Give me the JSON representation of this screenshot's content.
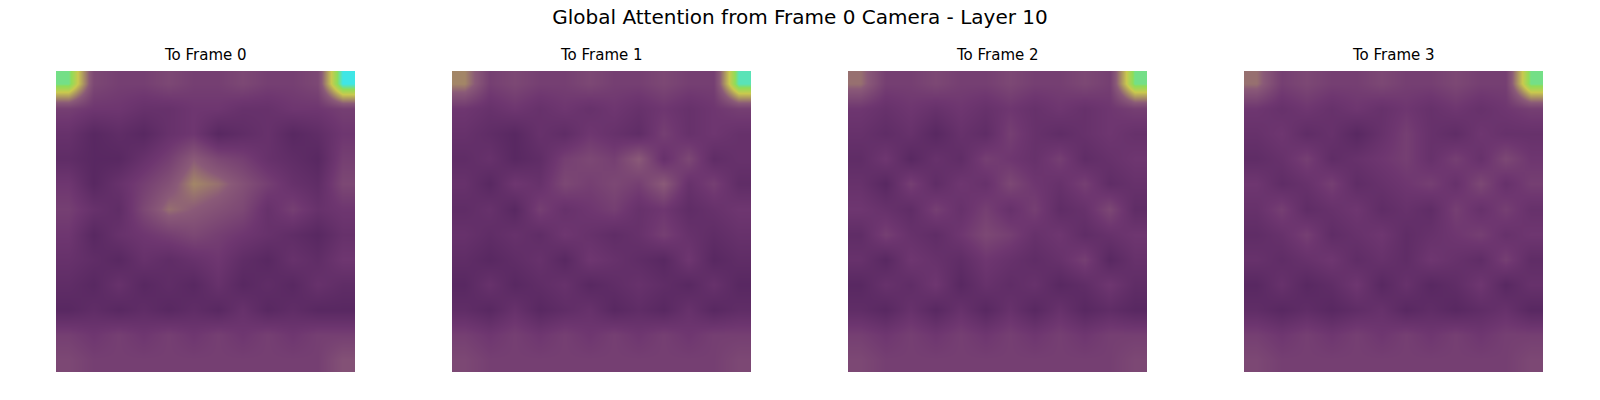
{
  "chart_data": {
    "type": "heatmap",
    "title": "Global Attention from Frame 0 Camera - Layer 10",
    "tick_labels": false,
    "zlim": [
      0,
      1
    ],
    "panels": [
      {
        "title": "To Frame 0",
        "cells": [
          [
            0.9,
            0.35,
            0.3,
            0.3,
            0.35,
            0.3,
            0.3,
            0.35,
            0.3,
            0.3,
            0.35,
            1.0
          ],
          [
            0.3,
            0.25,
            0.25,
            0.2,
            0.2,
            0.25,
            0.25,
            0.2,
            0.2,
            0.25,
            0.25,
            0.3
          ],
          [
            0.2,
            0.1,
            0.15,
            0.1,
            0.2,
            0.25,
            0.1,
            0.15,
            0.2,
            0.1,
            0.15,
            0.25
          ],
          [
            0.15,
            0.1,
            0.1,
            0.2,
            0.3,
            0.45,
            0.35,
            0.3,
            0.2,
            0.15,
            0.1,
            0.3
          ],
          [
            0.25,
            0.1,
            0.2,
            0.3,
            0.4,
            0.55,
            0.5,
            0.4,
            0.3,
            0.2,
            0.15,
            0.35
          ],
          [
            0.3,
            0.2,
            0.15,
            0.35,
            0.5,
            0.45,
            0.4,
            0.35,
            0.2,
            0.3,
            0.2,
            0.25
          ],
          [
            0.25,
            0.1,
            0.2,
            0.25,
            0.3,
            0.35,
            0.3,
            0.25,
            0.2,
            0.15,
            0.1,
            0.2
          ],
          [
            0.2,
            0.15,
            0.1,
            0.2,
            0.15,
            0.2,
            0.25,
            0.15,
            0.1,
            0.2,
            0.15,
            0.25
          ],
          [
            0.15,
            0.1,
            0.2,
            0.1,
            0.15,
            0.1,
            0.2,
            0.1,
            0.15,
            0.1,
            0.2,
            0.15
          ],
          [
            0.1,
            0.15,
            0.1,
            0.15,
            0.1,
            0.15,
            0.1,
            0.2,
            0.1,
            0.15,
            0.1,
            0.1
          ],
          [
            0.3,
            0.25,
            0.3,
            0.25,
            0.3,
            0.25,
            0.3,
            0.25,
            0.3,
            0.25,
            0.3,
            0.3
          ],
          [
            0.35,
            0.3,
            0.3,
            0.3,
            0.3,
            0.3,
            0.3,
            0.3,
            0.3,
            0.3,
            0.3,
            0.4
          ]
        ]
      },
      {
        "title": "To Frame 1",
        "cells": [
          [
            0.55,
            0.3,
            0.35,
            0.3,
            0.3,
            0.35,
            0.3,
            0.3,
            0.35,
            0.3,
            0.3,
            0.95
          ],
          [
            0.25,
            0.2,
            0.25,
            0.2,
            0.25,
            0.2,
            0.25,
            0.2,
            0.25,
            0.2,
            0.25,
            0.3
          ],
          [
            0.2,
            0.15,
            0.1,
            0.2,
            0.15,
            0.25,
            0.2,
            0.15,
            0.3,
            0.2,
            0.25,
            0.2
          ],
          [
            0.15,
            0.2,
            0.1,
            0.15,
            0.3,
            0.35,
            0.3,
            0.45,
            0.2,
            0.35,
            0.15,
            0.2
          ],
          [
            0.2,
            0.1,
            0.25,
            0.2,
            0.35,
            0.3,
            0.35,
            0.3,
            0.45,
            0.2,
            0.3,
            0.15
          ],
          [
            0.15,
            0.2,
            0.1,
            0.3,
            0.2,
            0.25,
            0.3,
            0.2,
            0.25,
            0.15,
            0.2,
            0.25
          ],
          [
            0.2,
            0.15,
            0.2,
            0.15,
            0.25,
            0.2,
            0.15,
            0.2,
            0.3,
            0.2,
            0.15,
            0.2
          ],
          [
            0.15,
            0.1,
            0.15,
            0.2,
            0.1,
            0.25,
            0.2,
            0.15,
            0.1,
            0.25,
            0.1,
            0.15
          ],
          [
            0.1,
            0.2,
            0.1,
            0.15,
            0.2,
            0.1,
            0.15,
            0.2,
            0.15,
            0.1,
            0.2,
            0.1
          ],
          [
            0.15,
            0.1,
            0.2,
            0.1,
            0.15,
            0.2,
            0.1,
            0.15,
            0.1,
            0.2,
            0.1,
            0.15
          ],
          [
            0.3,
            0.25,
            0.3,
            0.25,
            0.3,
            0.25,
            0.3,
            0.25,
            0.3,
            0.25,
            0.3,
            0.3
          ],
          [
            0.35,
            0.3,
            0.3,
            0.3,
            0.3,
            0.3,
            0.3,
            0.3,
            0.3,
            0.3,
            0.3,
            0.35
          ]
        ]
      },
      {
        "title": "To Frame 2",
        "cells": [
          [
            0.5,
            0.3,
            0.3,
            0.35,
            0.3,
            0.3,
            0.35,
            0.3,
            0.3,
            0.35,
            0.3,
            0.9
          ],
          [
            0.25,
            0.2,
            0.25,
            0.2,
            0.25,
            0.2,
            0.25,
            0.2,
            0.25,
            0.2,
            0.25,
            0.3
          ],
          [
            0.2,
            0.15,
            0.2,
            0.1,
            0.2,
            0.15,
            0.3,
            0.2,
            0.15,
            0.2,
            0.25,
            0.2
          ],
          [
            0.15,
            0.25,
            0.1,
            0.2,
            0.15,
            0.3,
            0.25,
            0.2,
            0.3,
            0.15,
            0.2,
            0.25
          ],
          [
            0.2,
            0.1,
            0.3,
            0.15,
            0.25,
            0.2,
            0.35,
            0.25,
            0.2,
            0.3,
            0.15,
            0.2
          ],
          [
            0.25,
            0.2,
            0.15,
            0.3,
            0.2,
            0.3,
            0.2,
            0.3,
            0.15,
            0.2,
            0.35,
            0.15
          ],
          [
            0.15,
            0.3,
            0.2,
            0.15,
            0.25,
            0.35,
            0.3,
            0.2,
            0.25,
            0.15,
            0.2,
            0.25
          ],
          [
            0.2,
            0.1,
            0.25,
            0.2,
            0.15,
            0.25,
            0.2,
            0.15,
            0.2,
            0.3,
            0.1,
            0.2
          ],
          [
            0.1,
            0.2,
            0.15,
            0.25,
            0.1,
            0.2,
            0.15,
            0.2,
            0.1,
            0.15,
            0.25,
            0.15
          ],
          [
            0.15,
            0.1,
            0.2,
            0.1,
            0.2,
            0.1,
            0.2,
            0.1,
            0.2,
            0.1,
            0.15,
            0.1
          ],
          [
            0.3,
            0.25,
            0.3,
            0.25,
            0.3,
            0.25,
            0.3,
            0.25,
            0.3,
            0.25,
            0.3,
            0.3
          ],
          [
            0.35,
            0.3,
            0.3,
            0.3,
            0.3,
            0.3,
            0.3,
            0.3,
            0.3,
            0.3,
            0.3,
            0.35
          ]
        ]
      },
      {
        "title": "To Frame 3",
        "cells": [
          [
            0.5,
            0.3,
            0.35,
            0.3,
            0.3,
            0.35,
            0.3,
            0.3,
            0.35,
            0.3,
            0.3,
            0.9
          ],
          [
            0.25,
            0.2,
            0.25,
            0.2,
            0.25,
            0.2,
            0.25,
            0.2,
            0.25,
            0.2,
            0.25,
            0.3
          ],
          [
            0.2,
            0.25,
            0.15,
            0.2,
            0.1,
            0.2,
            0.3,
            0.2,
            0.15,
            0.25,
            0.2,
            0.2
          ],
          [
            0.15,
            0.2,
            0.3,
            0.15,
            0.2,
            0.25,
            0.3,
            0.2,
            0.3,
            0.2,
            0.35,
            0.25
          ],
          [
            0.25,
            0.15,
            0.2,
            0.3,
            0.15,
            0.2,
            0.25,
            0.3,
            0.2,
            0.35,
            0.2,
            0.3
          ],
          [
            0.2,
            0.3,
            0.15,
            0.2,
            0.25,
            0.15,
            0.2,
            0.15,
            0.3,
            0.2,
            0.3,
            0.2
          ],
          [
            0.15,
            0.2,
            0.3,
            0.15,
            0.2,
            0.25,
            0.15,
            0.2,
            0.25,
            0.3,
            0.2,
            0.25
          ],
          [
            0.2,
            0.15,
            0.2,
            0.25,
            0.15,
            0.2,
            0.15,
            0.25,
            0.2,
            0.15,
            0.3,
            0.15
          ],
          [
            0.1,
            0.2,
            0.1,
            0.15,
            0.25,
            0.1,
            0.2,
            0.1,
            0.15,
            0.25,
            0.1,
            0.2
          ],
          [
            0.15,
            0.1,
            0.15,
            0.1,
            0.15,
            0.2,
            0.1,
            0.15,
            0.1,
            0.15,
            0.2,
            0.1
          ],
          [
            0.3,
            0.25,
            0.3,
            0.25,
            0.3,
            0.25,
            0.3,
            0.25,
            0.3,
            0.25,
            0.3,
            0.3
          ],
          [
            0.35,
            0.3,
            0.3,
            0.3,
            0.3,
            0.3,
            0.3,
            0.3,
            0.3,
            0.3,
            0.3,
            0.35
          ]
        ]
      }
    ]
  }
}
